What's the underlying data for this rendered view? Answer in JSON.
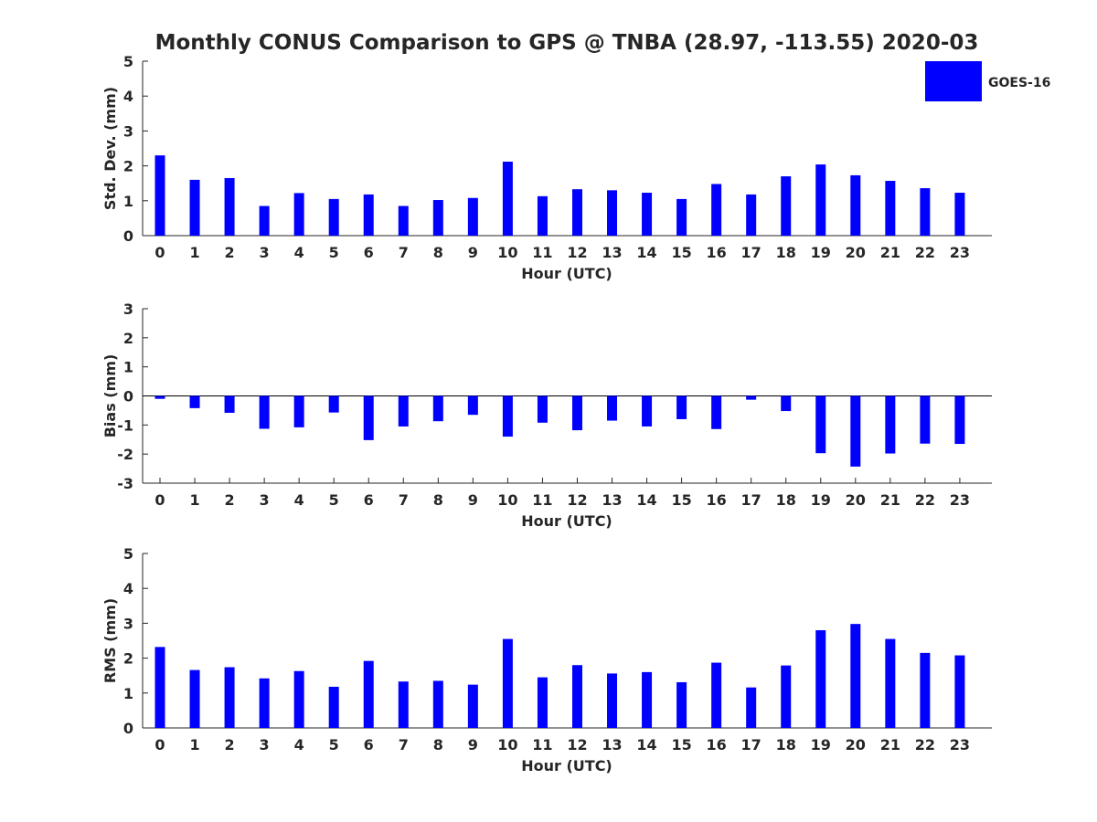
{
  "title": "Monthly CONUS Comparison to GPS @ TNBA (28.97, -113.55) 2020-03",
  "legend": {
    "label": "GOES-16",
    "color": "#0000ff",
    "placement": "top-right"
  },
  "chart_data": [
    {
      "type": "bar",
      "xlabel": "Hour (UTC)",
      "ylabel": "Std. Dev. (mm)",
      "ylim": [
        0,
        5
      ],
      "yticks": [
        0,
        1,
        2,
        3,
        4,
        5
      ],
      "categories": [
        "0",
        "1",
        "2",
        "3",
        "4",
        "5",
        "6",
        "7",
        "8",
        "9",
        "10",
        "11",
        "12",
        "13",
        "14",
        "15",
        "16",
        "17",
        "18",
        "19",
        "20",
        "21",
        "22",
        "23"
      ],
      "series": [
        {
          "name": "GOES-16",
          "color": "#0000ff",
          "values": [
            2.3,
            1.6,
            1.65,
            0.85,
            1.22,
            1.05,
            1.18,
            0.85,
            1.02,
            1.08,
            2.12,
            1.13,
            1.33,
            1.3,
            1.23,
            1.05,
            1.48,
            1.18,
            1.7,
            2.04,
            1.73,
            1.57,
            1.36,
            1.23
          ]
        }
      ]
    },
    {
      "type": "bar",
      "xlabel": "Hour (UTC)",
      "ylabel": "Bias (mm)",
      "ylim": [
        -3,
        3
      ],
      "yticks": [
        -3,
        -2,
        -1,
        0,
        1,
        2,
        3
      ],
      "categories": [
        "0",
        "1",
        "2",
        "3",
        "4",
        "5",
        "6",
        "7",
        "8",
        "9",
        "10",
        "11",
        "12",
        "13",
        "14",
        "15",
        "16",
        "17",
        "18",
        "19",
        "20",
        "21",
        "22",
        "23"
      ],
      "series": [
        {
          "name": "GOES-16",
          "color": "#0000ff",
          "values": [
            -0.1,
            -0.42,
            -0.58,
            -1.13,
            -1.08,
            -0.57,
            -1.52,
            -1.05,
            -0.87,
            -0.65,
            -1.4,
            -0.92,
            -1.18,
            -0.85,
            -1.05,
            -0.8,
            -1.14,
            -0.13,
            -0.52,
            -1.97,
            -2.43,
            -1.98,
            -1.64,
            -1.65
          ]
        }
      ]
    },
    {
      "type": "bar",
      "xlabel": "Hour (UTC)",
      "ylabel": "RMS (mm)",
      "ylim": [
        0,
        5
      ],
      "yticks": [
        0,
        1,
        2,
        3,
        4,
        5
      ],
      "categories": [
        "0",
        "1",
        "2",
        "3",
        "4",
        "5",
        "6",
        "7",
        "8",
        "9",
        "10",
        "11",
        "12",
        "13",
        "14",
        "15",
        "16",
        "17",
        "18",
        "19",
        "20",
        "21",
        "22",
        "23"
      ],
      "series": [
        {
          "name": "GOES-16",
          "color": "#0000ff",
          "values": [
            2.32,
            1.66,
            1.74,
            1.42,
            1.63,
            1.18,
            1.92,
            1.33,
            1.35,
            1.24,
            2.55,
            1.45,
            1.8,
            1.56,
            1.6,
            1.31,
            1.87,
            1.16,
            1.79,
            2.8,
            2.98,
            2.55,
            2.15,
            2.08
          ]
        }
      ]
    }
  ]
}
